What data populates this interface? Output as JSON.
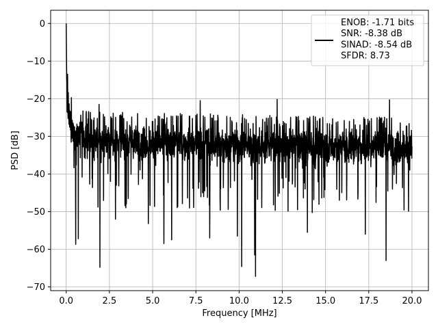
{
  "chart_data": {
    "type": "line",
    "title": "",
    "xlabel": "Frequency [MHz]",
    "ylabel": "PSD [dB]",
    "xlim": [
      -0.9,
      20.95
    ],
    "ylim": [
      -71,
      3.5
    ],
    "xticks": [
      0.0,
      2.5,
      5.0,
      7.5,
      10.0,
      12.5,
      15.0,
      17.5,
      20.0
    ],
    "xtick_labels": [
      "0.0",
      "2.5",
      "5.0",
      "7.5",
      "10.0",
      "12.5",
      "15.0",
      "17.5",
      "20.0"
    ],
    "yticks": [
      0,
      -10,
      -20,
      -30,
      -40,
      -50,
      -60,
      -70
    ],
    "ytick_labels": [
      "0",
      "−10",
      "−20",
      "−30",
      "−40",
      "−50",
      "−60",
      "−70"
    ],
    "grid": true,
    "legend_position": "top-right",
    "line_color": "#000000",
    "series": [
      {
        "label_lines": [
          "ENOB: -1.71 bits",
          "SNR: -8.38 dB",
          "SINAD: -8.54 dB",
          "SFDR: 8.73"
        ],
        "x_range": [
          0.0,
          20.0
        ],
        "dc_peak": {
          "x": 0.0,
          "y": 0.0
        },
        "near_dc_decay": [
          {
            "x": 0.0,
            "y": 0.0
          },
          {
            "x": 0.02,
            "y": -9.0
          },
          {
            "x": 0.05,
            "y": -14.0
          },
          {
            "x": 0.1,
            "y": -16.5
          },
          {
            "x": 0.2,
            "y": -18.0
          },
          {
            "x": 0.5,
            "y": -21.0
          },
          {
            "x": 1.0,
            "y": -23.0
          },
          {
            "x": 2.0,
            "y": -23.5
          },
          {
            "x": 20.0,
            "y": -25.0
          }
        ],
        "noise_floor_band_db": [
          -27,
          -37
        ],
        "typical_peak_level_db": -23,
        "notable_minima": [
          {
            "x": 0.55,
            "y": -58.7
          },
          {
            "x": 0.7,
            "y": -57.2
          },
          {
            "x": 1.95,
            "y": -64.8
          },
          {
            "x": 2.85,
            "y": -52.0
          },
          {
            "x": 4.75,
            "y": -53.2
          },
          {
            "x": 5.65,
            "y": -58.5
          },
          {
            "x": 6.1,
            "y": -57.5
          },
          {
            "x": 8.3,
            "y": -57.0
          },
          {
            "x": 9.9,
            "y": -56.5
          },
          {
            "x": 10.15,
            "y": -64.6
          },
          {
            "x": 10.9,
            "y": -61.5
          },
          {
            "x": 10.95,
            "y": -67.2
          },
          {
            "x": 13.95,
            "y": -55.5
          },
          {
            "x": 17.3,
            "y": -56.0
          },
          {
            "x": 18.5,
            "y": -63.0
          }
        ],
        "notable_maxima": [
          {
            "x": 0.08,
            "y": -13.5
          },
          {
            "x": 1.9,
            "y": -21.5
          },
          {
            "x": 7.75,
            "y": -20.5
          },
          {
            "x": 12.2,
            "y": -20.2
          },
          {
            "x": 18.7,
            "y": -20.3
          }
        ]
      }
    ]
  }
}
